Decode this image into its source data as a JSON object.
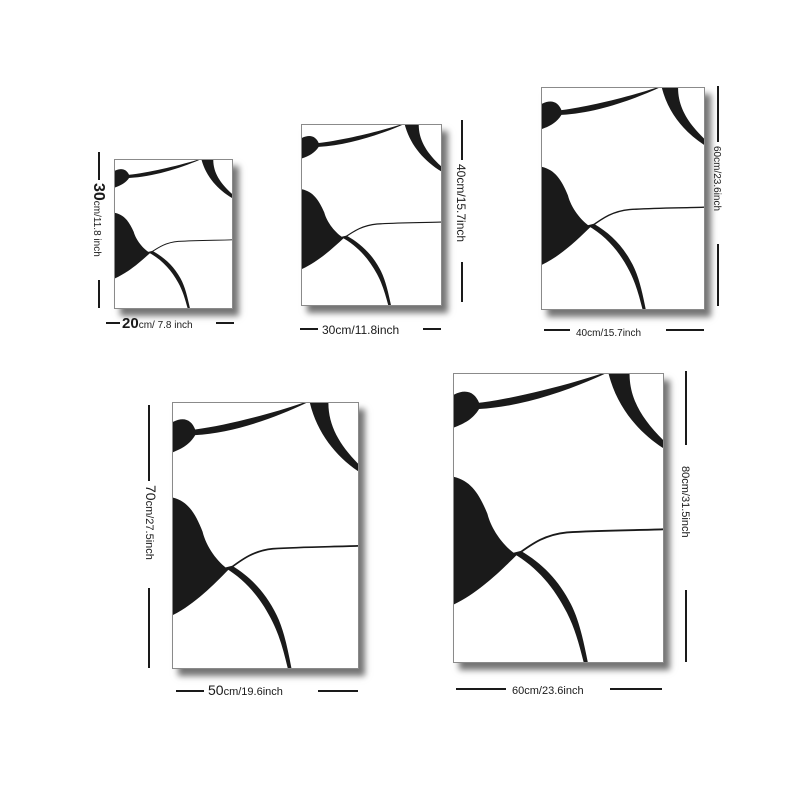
{
  "colors": {
    "ink": "#1a1a1a",
    "canvas": "#ffffff",
    "shadow": "#555555"
  },
  "artwork": {
    "icon": "abstract-line-art-icon"
  },
  "sizes": [
    {
      "width_big": "20",
      "width_rest": "cm/ 7.8 inch",
      "height_big": "30",
      "height_rest": "cm/11.8 inch"
    },
    {
      "width_big": "30",
      "width_rest": "cm/11.8inch",
      "height_big": "40",
      "height_rest": "cm/15.7inch"
    },
    {
      "width_big": "40",
      "width_rest": "cm/15.7inch",
      "height_big": "60",
      "height_rest": "cm/23.6inch"
    },
    {
      "width_big": "50",
      "width_rest": "cm/19.6inch",
      "height_big": "70",
      "height_rest": "cm/27.5inch"
    },
    {
      "width_big": "60",
      "width_rest": "cm/23.6inch",
      "height_big": "80",
      "height_rest": "cm/31.5inch"
    }
  ]
}
